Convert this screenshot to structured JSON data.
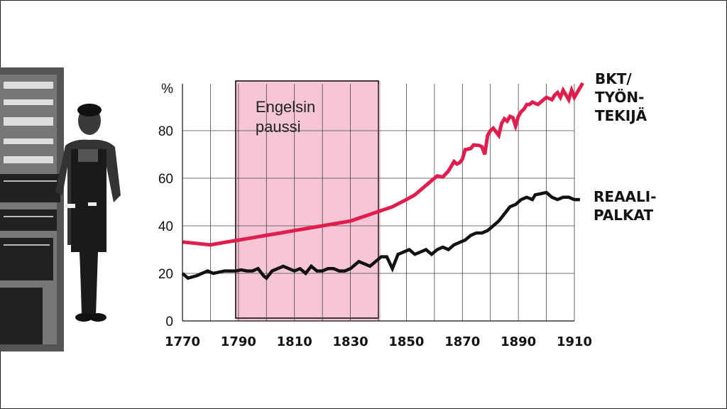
{
  "chart_data": {
    "type": "line",
    "ylabel": "%",
    "ylim": [
      0,
      100
    ],
    "xlim": [
      1770,
      1913
    ],
    "x_ticks": [
      1770,
      1790,
      1810,
      1830,
      1850,
      1870,
      1890,
      1910
    ],
    "y_ticks": [
      0,
      20,
      40,
      60,
      80
    ],
    "grid": true,
    "annotation": {
      "label_lines": [
        "Engelsin",
        "paussi"
      ],
      "x_start": 1789,
      "x_end": 1840,
      "color": "#f7c6d6"
    },
    "series": [
      {
        "name_lines": [
          "BKT/",
          "TYÖN-",
          "TEKIJÄ"
        ],
        "color": "#e01e4e",
        "points": [
          [
            1770,
            33.2
          ],
          [
            1775,
            32.6
          ],
          [
            1780,
            32
          ],
          [
            1785,
            33
          ],
          [
            1790,
            34
          ],
          [
            1795,
            35
          ],
          [
            1800,
            36
          ],
          [
            1805,
            37
          ],
          [
            1810,
            38
          ],
          [
            1815,
            39
          ],
          [
            1820,
            40
          ],
          [
            1825,
            41
          ],
          [
            1830,
            42
          ],
          [
            1835,
            44
          ],
          [
            1840,
            46
          ],
          [
            1845,
            48
          ],
          [
            1850,
            51
          ],
          [
            1853,
            53
          ],
          [
            1856,
            56
          ],
          [
            1859,
            59
          ],
          [
            1861,
            61
          ],
          [
            1863,
            60.5
          ],
          [
            1865,
            63
          ],
          [
            1866,
            65
          ],
          [
            1867,
            67
          ],
          [
            1868,
            66
          ],
          [
            1869,
            66.5
          ],
          [
            1870,
            68
          ],
          [
            1871,
            72
          ],
          [
            1873,
            72.5
          ],
          [
            1874,
            74
          ],
          [
            1876,
            73.8
          ],
          [
            1877,
            73.2
          ],
          [
            1878,
            70
          ],
          [
            1879,
            78
          ],
          [
            1880,
            80
          ],
          [
            1881,
            81
          ],
          [
            1883,
            78
          ],
          [
            1884,
            83
          ],
          [
            1885,
            85
          ],
          [
            1886,
            84
          ],
          [
            1887,
            86
          ],
          [
            1888,
            85.5
          ],
          [
            1889,
            82
          ],
          [
            1890,
            86
          ],
          [
            1891,
            88
          ],
          [
            1892,
            89
          ],
          [
            1893,
            91
          ],
          [
            1894,
            91
          ],
          [
            1895,
            92
          ],
          [
            1896,
            91.5
          ],
          [
            1897,
            91
          ],
          [
            1898,
            92
          ],
          [
            1900,
            94
          ],
          [
            1902,
            93
          ],
          [
            1903,
            95
          ],
          [
            1904,
            96
          ],
          [
            1905,
            94
          ],
          [
            1906,
            97
          ],
          [
            1907,
            95
          ],
          [
            1908,
            93
          ],
          [
            1909,
            97
          ],
          [
            1910,
            94
          ],
          [
            1911,
            96
          ],
          [
            1913,
            100
          ]
        ]
      },
      {
        "name_lines": [
          "REAALI-",
          "PALKAT"
        ],
        "color": "#111111",
        "points": [
          [
            1770,
            20
          ],
          [
            1772,
            18
          ],
          [
            1775,
            19
          ],
          [
            1777,
            20
          ],
          [
            1779,
            21
          ],
          [
            1781,
            20
          ],
          [
            1783,
            20.5
          ],
          [
            1785,
            21
          ],
          [
            1787,
            21
          ],
          [
            1789,
            21
          ],
          [
            1791,
            21.5
          ],
          [
            1793,
            21
          ],
          [
            1795,
            21
          ],
          [
            1797,
            22
          ],
          [
            1799,
            19
          ],
          [
            1800,
            18
          ],
          [
            1802,
            21
          ],
          [
            1804,
            22
          ],
          [
            1806,
            23
          ],
          [
            1808,
            22
          ],
          [
            1810,
            21
          ],
          [
            1812,
            22
          ],
          [
            1814,
            20
          ],
          [
            1816,
            23
          ],
          [
            1818,
            21
          ],
          [
            1820,
            21
          ],
          [
            1822,
            22
          ],
          [
            1824,
            22
          ],
          [
            1826,
            21
          ],
          [
            1828,
            21
          ],
          [
            1830,
            22
          ],
          [
            1832,
            24
          ],
          [
            1833,
            25
          ],
          [
            1835,
            24
          ],
          [
            1837,
            23
          ],
          [
            1839,
            25
          ],
          [
            1841,
            27
          ],
          [
            1843,
            27
          ],
          [
            1845,
            22
          ],
          [
            1847,
            28
          ],
          [
            1849,
            29
          ],
          [
            1851,
            30
          ],
          [
            1853,
            28
          ],
          [
            1855,
            29
          ],
          [
            1857,
            30
          ],
          [
            1859,
            28
          ],
          [
            1861,
            30
          ],
          [
            1863,
            31
          ],
          [
            1865,
            30
          ],
          [
            1867,
            32
          ],
          [
            1869,
            33
          ],
          [
            1871,
            34
          ],
          [
            1873,
            36
          ],
          [
            1875,
            37
          ],
          [
            1877,
            37
          ],
          [
            1879,
            38
          ],
          [
            1881,
            40
          ],
          [
            1883,
            42
          ],
          [
            1885,
            45
          ],
          [
            1887,
            48
          ],
          [
            1889,
            49
          ],
          [
            1891,
            51
          ],
          [
            1893,
            52
          ],
          [
            1895,
            51
          ],
          [
            1896,
            53
          ],
          [
            1898,
            53.5
          ],
          [
            1900,
            54
          ],
          [
            1902,
            52
          ],
          [
            1904,
            51
          ],
          [
            1906,
            52
          ],
          [
            1908,
            52
          ],
          [
            1910,
            51
          ],
          [
            1912,
            51
          ]
        ]
      }
    ]
  },
  "photo": {
    "description_icon": "worker-photo"
  }
}
